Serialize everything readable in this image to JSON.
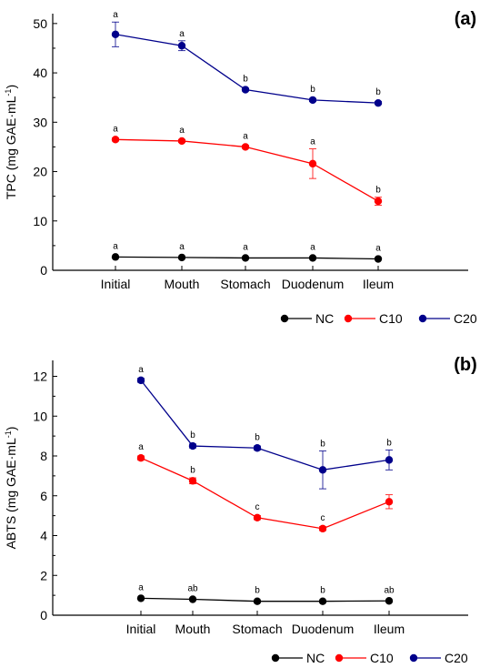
{
  "chart_data": [
    {
      "panel_label": "(a)",
      "type": "line",
      "ylabel": "TPC (mg GAE·mL",
      "ylabel_sup": "-1",
      "ylabel_end": ")",
      "categories": [
        "Initial",
        "Mouth",
        "Stomach",
        "Duodenum",
        "Ileum"
      ],
      "ylim": [
        0,
        52
      ],
      "yticks": [
        0,
        10,
        20,
        30,
        40,
        50
      ],
      "grid": false,
      "legend_position": "bottom-right",
      "series": [
        {
          "name": "NC",
          "color": "#000000",
          "values": [
            2.7,
            2.6,
            2.5,
            2.5,
            2.3
          ],
          "errors": [
            0.15,
            0.1,
            0.1,
            0.1,
            0.1
          ],
          "letters": [
            "a",
            "a",
            "a",
            "a",
            "a"
          ]
        },
        {
          "name": "C10",
          "color": "#ff0000",
          "values": [
            26.5,
            26.2,
            25.0,
            21.6,
            14.0
          ],
          "errors": [
            0.3,
            0.3,
            0.3,
            3.0,
            0.8
          ],
          "letters": [
            "a",
            "a",
            "a",
            "a",
            "b"
          ]
        },
        {
          "name": "C20",
          "color": "#00008b",
          "values": [
            47.8,
            45.5,
            36.6,
            34.5,
            33.9
          ],
          "errors": [
            2.5,
            1.0,
            0.3,
            0.3,
            0.3
          ],
          "letters": [
            "a",
            "a",
            "b",
            "b",
            "b"
          ]
        }
      ]
    },
    {
      "panel_label": "(b)",
      "type": "line",
      "ylabel": "ABTS (mg GAE·mL",
      "ylabel_sup": "-1",
      "ylabel_end": ")",
      "categories": [
        "Initial",
        "Mouth",
        "Stomach",
        "Duodenum",
        "Ileum"
      ],
      "ylim": [
        0,
        12.8
      ],
      "yticks": [
        0,
        2,
        4,
        6,
        8,
        10,
        12
      ],
      "grid": false,
      "legend_position": "bottom-right",
      "series": [
        {
          "name": "NC",
          "color": "#000000",
          "values": [
            0.85,
            0.8,
            0.7,
            0.7,
            0.72
          ],
          "errors": [
            0.05,
            0.05,
            0.05,
            0.05,
            0.05
          ],
          "letters": [
            "a",
            "ab",
            "b",
            "b",
            "ab"
          ]
        },
        {
          "name": "C10",
          "color": "#ff0000",
          "values": [
            7.9,
            6.75,
            4.9,
            4.35,
            5.7
          ],
          "errors": [
            0.1,
            0.15,
            0.1,
            0.1,
            0.35
          ],
          "letters": [
            "a",
            "b",
            "c",
            "c",
            ""
          ]
        },
        {
          "name": "C20",
          "color": "#00008b",
          "values": [
            11.8,
            8.5,
            8.4,
            7.3,
            7.8
          ],
          "errors": [
            0.1,
            0.1,
            0.1,
            0.95,
            0.5
          ],
          "letters": [
            "a",
            "b",
            "b",
            "b",
            "b"
          ]
        }
      ]
    }
  ]
}
